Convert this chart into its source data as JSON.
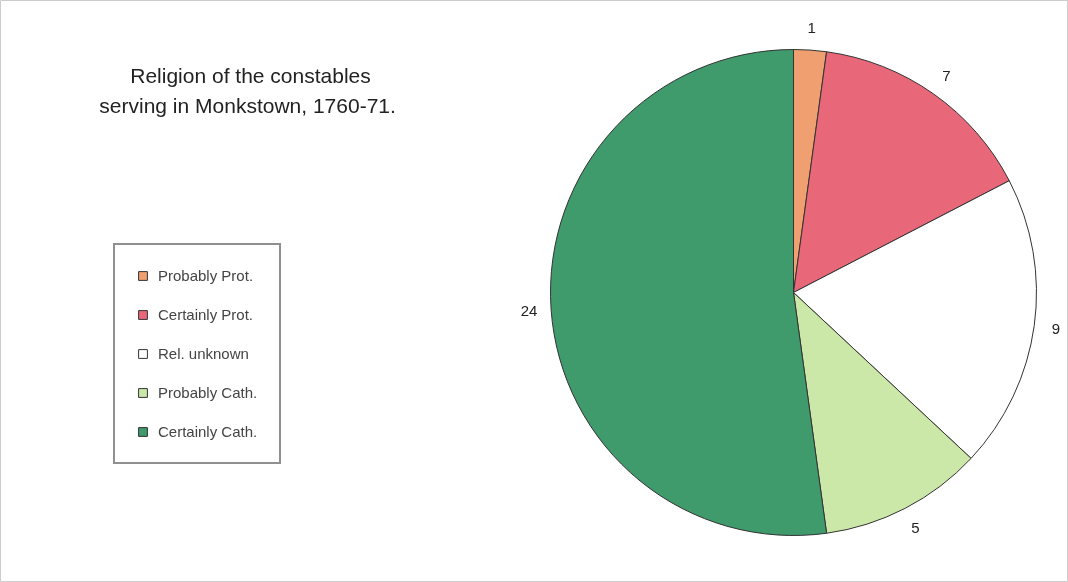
{
  "chart_data": {
    "type": "pie",
    "title": "Religion of the constables\nserving  in Monkstown, 1760-71.",
    "categories": [
      "Probably Prot.",
      "Certainly Prot.",
      "Rel. unknown",
      "Probably Cath.",
      "Certainly Cath."
    ],
    "values": [
      1,
      7,
      9,
      5,
      24
    ],
    "colors": [
      "#f0a070",
      "#e8687a",
      "#ffffff",
      "#cce8a8",
      "#3f9a6c"
    ],
    "data_labels": true,
    "legend": "left"
  }
}
